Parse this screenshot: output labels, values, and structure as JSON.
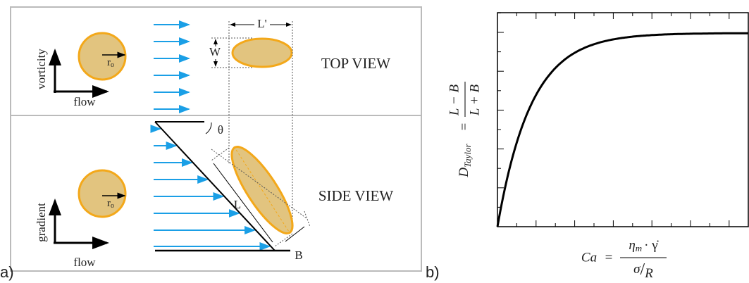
{
  "panel_a": {
    "label": "a)",
    "top_view": {
      "title": "TOP VIEW",
      "axis_vertical": "vorticity",
      "axis_horizontal": "flow",
      "radius": "r",
      "radius_sub": "o",
      "width": "W",
      "length": "L'"
    },
    "side_view": {
      "title": "SIDE VIEW",
      "axis_vertical": "gradient",
      "axis_horizontal": "flow",
      "radius": "r",
      "radius_sub": "o",
      "length": "L",
      "breadth": "B",
      "angle": "θ"
    }
  },
  "panel_b": {
    "label": "b)",
    "y_label": {
      "symbol": "D",
      "subscript": "Taylor",
      "equals": "=",
      "numerator": "L − B",
      "denominator": "L + B"
    },
    "x_label": {
      "symbol": "Ca",
      "equals": "=",
      "numerator_symbol": "η",
      "numerator_subscript": "m",
      "numerator_rest": "· γ̇",
      "denominator": "σ",
      "slash": "/",
      "denominator_sub": "R"
    }
  }
}
